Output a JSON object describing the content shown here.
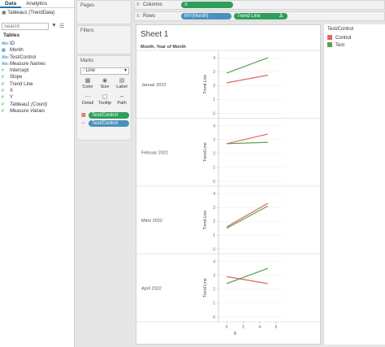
{
  "data_pane": {
    "tabs": [
      "Data",
      "Analytics"
    ],
    "datasource": "Tableau1 (TrendData)",
    "search_placeholder": "Search",
    "tables_heading": "Tables",
    "fields": [
      {
        "name": "ID",
        "kind": "dim",
        "icon": "Abc"
      },
      {
        "name": "Month",
        "kind": "dim",
        "icon": "cal"
      },
      {
        "name": "Test/Control",
        "kind": "dim",
        "icon": "Abc"
      },
      {
        "name": "Measure Names",
        "kind": "dim",
        "icon": "Abc"
      },
      {
        "name": "Intercept",
        "kind": "meas",
        "icon": "#"
      },
      {
        "name": "Slope",
        "kind": "meas",
        "icon": "#"
      },
      {
        "name": "Trend Line",
        "kind": "meas",
        "icon": "#"
      },
      {
        "name": "X",
        "kind": "meas",
        "icon": "#"
      },
      {
        "name": "Y",
        "kind": "meas",
        "icon": "#"
      },
      {
        "name": "Tableau1 (Count)",
        "kind": "meas",
        "icon": "#"
      },
      {
        "name": "Measure Values",
        "kind": "meas",
        "icon": "#"
      }
    ]
  },
  "shelves": {
    "pages": "Pages",
    "filters": "Filters",
    "marks": "Marks",
    "mark_type": "Line",
    "mark_buttons": [
      "Color",
      "Size",
      "Label",
      "Detail",
      "Tooltip",
      "Path"
    ],
    "mark_pills": [
      "Test/Control",
      "Test/Control"
    ],
    "columns_label": "Columns",
    "rows_label": "Rows",
    "columns_pill": "X",
    "rows_pills": [
      "MY(Month)",
      "Trend Line"
    ]
  },
  "sheet": {
    "title": "Sheet 1",
    "header": "Month, Year of Month"
  },
  "legend": {
    "title": "Test/Control",
    "items": [
      {
        "name": "Control",
        "color": "#e06666"
      },
      {
        "name": "Test",
        "color": "#5aa050"
      }
    ]
  },
  "chart_data": {
    "type": "line",
    "xlabel": "X",
    "ylabel": "Trend Line",
    "xticks": [
      0,
      2,
      4,
      6
    ],
    "yticks": [
      0,
      1,
      2,
      3,
      4
    ],
    "xlim": [
      -1,
      7
    ],
    "ylim": [
      0,
      4.3
    ],
    "panels": [
      {
        "label": "Januar 2022",
        "series": [
          {
            "name": "Control",
            "x": [
              0,
              5
            ],
            "y": [
              2.2,
              2.75
            ]
          },
          {
            "name": "Test",
            "x": [
              0,
              5
            ],
            "y": [
              2.9,
              4.0
            ]
          }
        ]
      },
      {
        "label": "Februar 2022",
        "series": [
          {
            "name": "Control",
            "x": [
              0,
              5
            ],
            "y": [
              2.7,
              3.4
            ]
          },
          {
            "name": "Test",
            "x": [
              0,
              5
            ],
            "y": [
              2.7,
              2.8
            ]
          }
        ]
      },
      {
        "label": "März 2022",
        "series": [
          {
            "name": "Control",
            "x": [
              0,
              5
            ],
            "y": [
              1.6,
              3.3
            ]
          },
          {
            "name": "Test",
            "x": [
              0,
              5
            ],
            "y": [
              1.5,
              3.1
            ]
          }
        ]
      },
      {
        "label": "April 2022",
        "series": [
          {
            "name": "Control",
            "x": [
              0,
              5
            ],
            "y": [
              2.9,
              2.4
            ]
          },
          {
            "name": "Test",
            "x": [
              0,
              5
            ],
            "y": [
              2.4,
              3.5
            ]
          }
        ]
      }
    ]
  }
}
